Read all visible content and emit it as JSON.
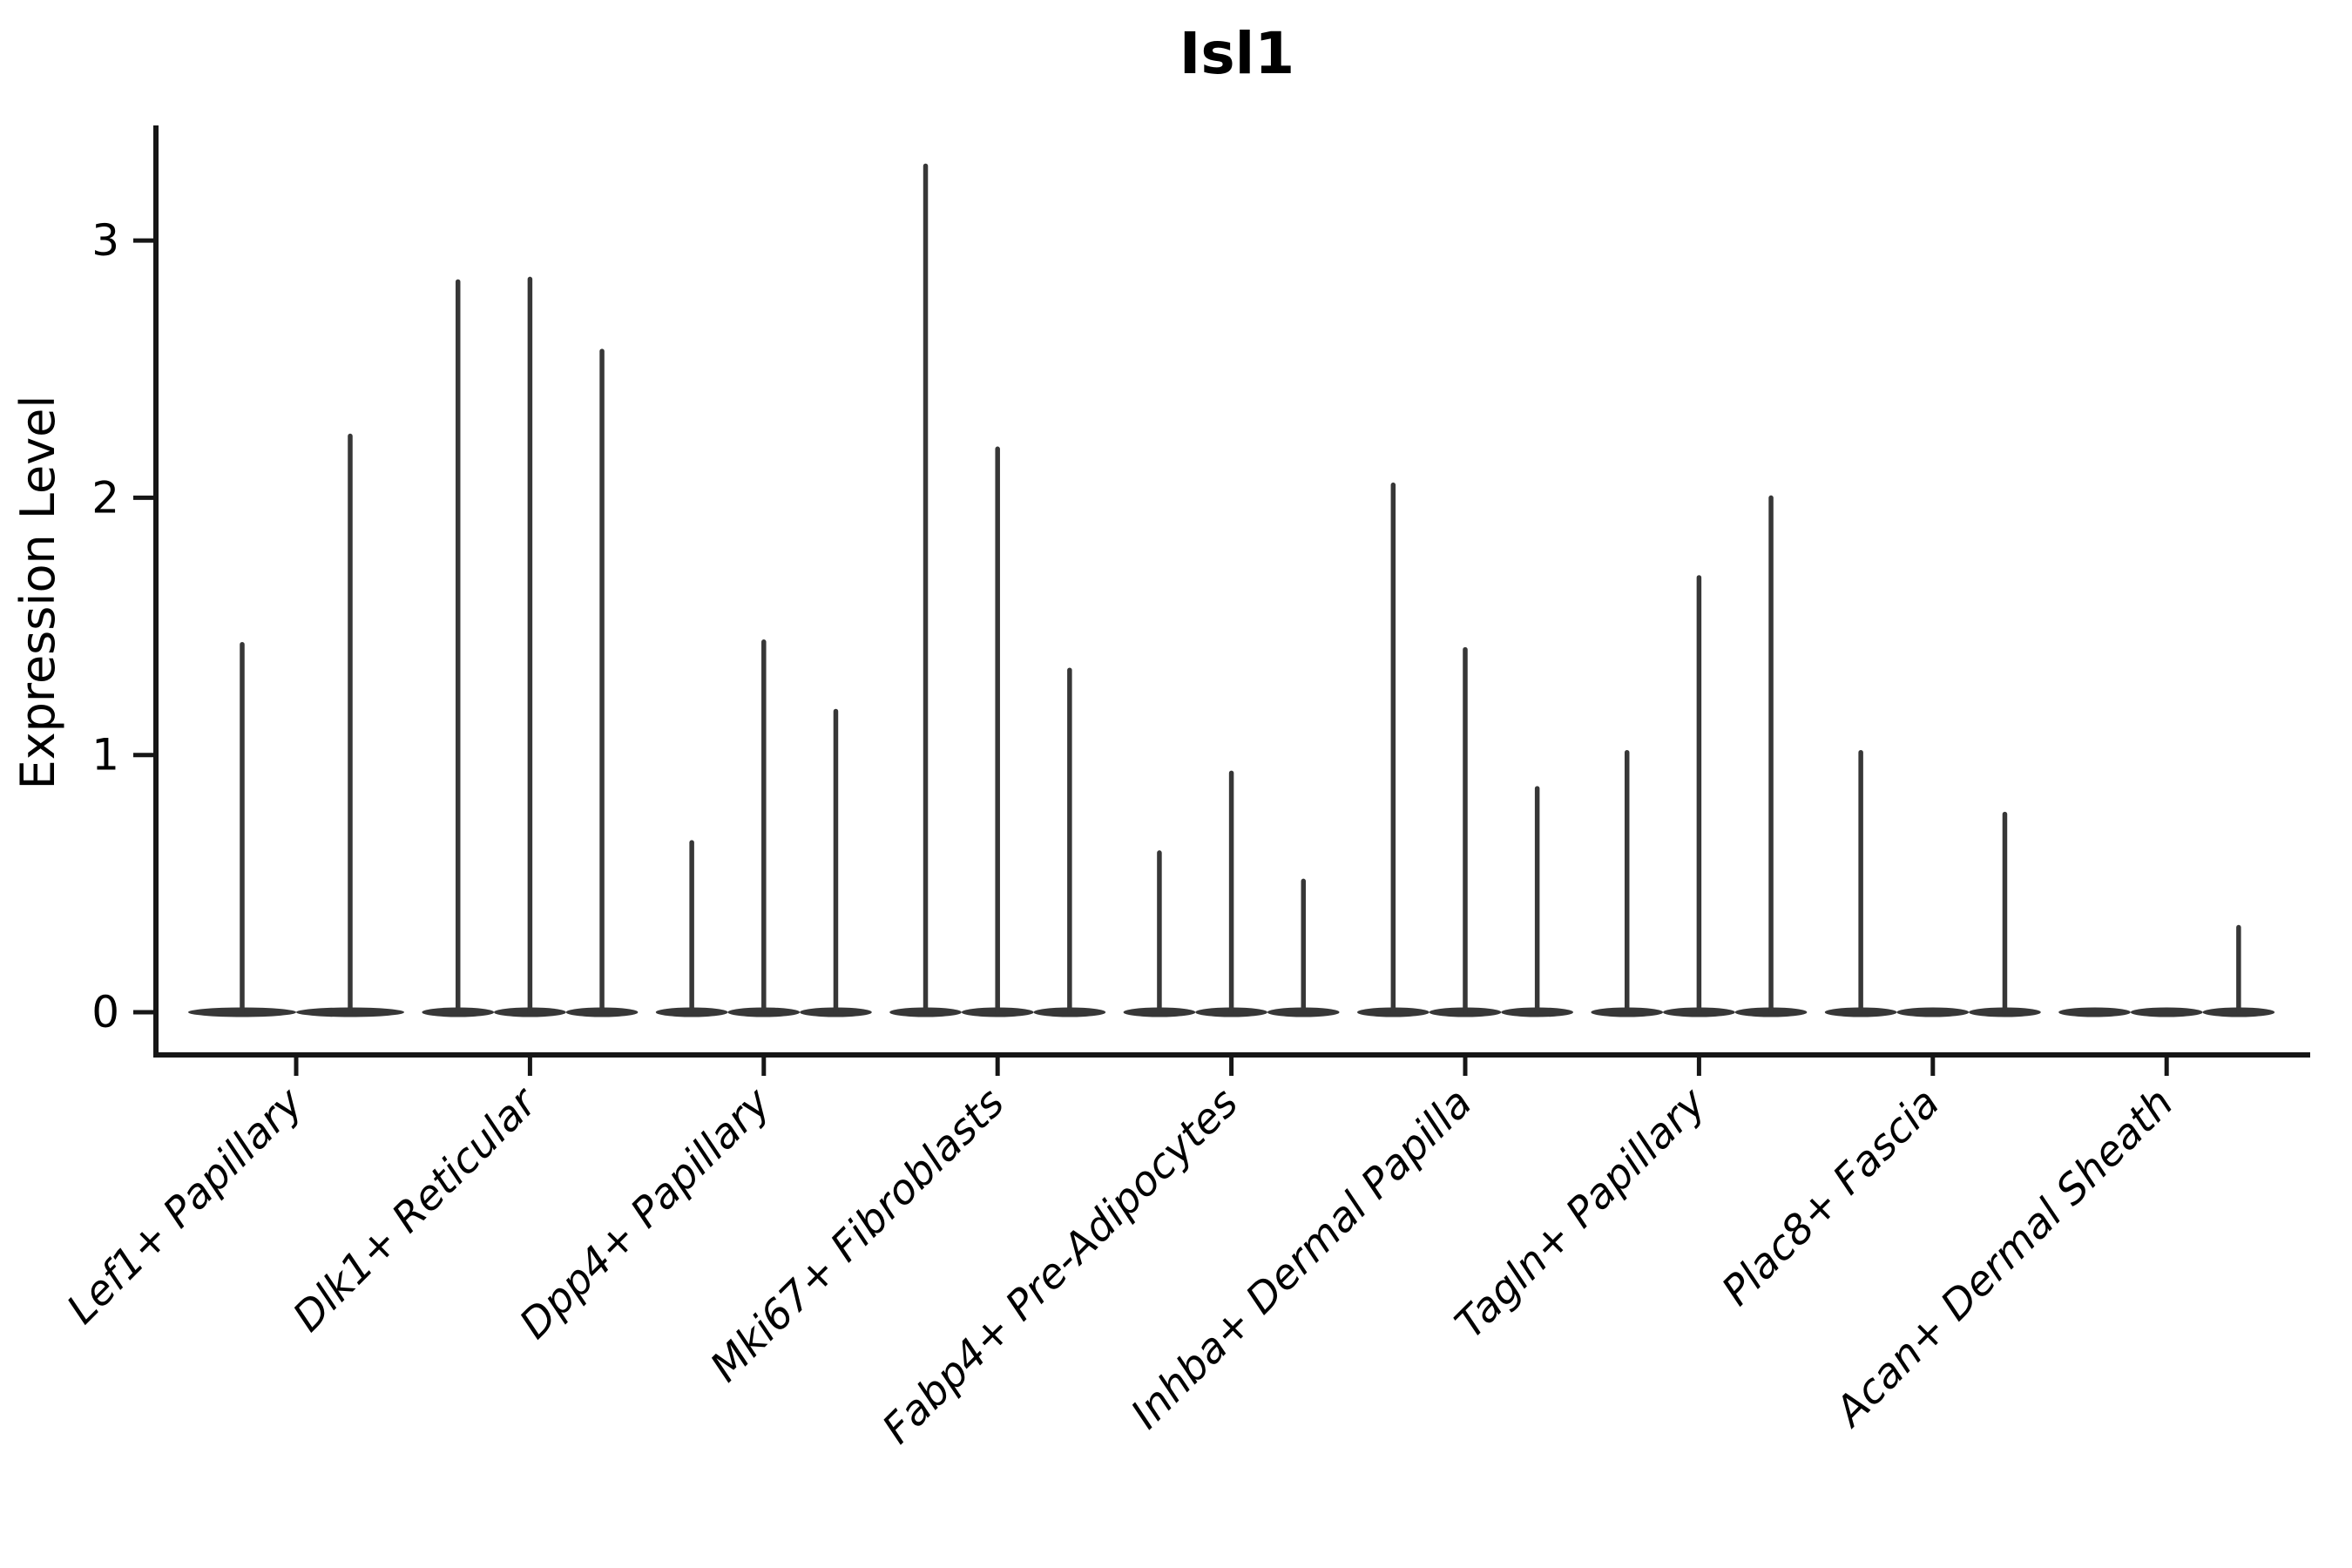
{
  "title": "Isl1",
  "chart_data": {
    "type": "violin",
    "title": "Isl1",
    "xlabel": "",
    "ylabel": "Expression Level",
    "yticks": [
      0,
      1,
      2,
      3
    ],
    "ylim": [
      -0.17,
      3.45
    ],
    "grid": false,
    "legend": "none",
    "description": "Single-cell expression violin plot; each category shows 2-3 near-zero-width violins (flat body at 0 with a thin spike to the max expression value).",
    "categories": [
      "Lef1+ Papillary",
      "Dlk1+ Reticular",
      "Dpp4+ Papillary",
      "Mki67+ Fibroblasts",
      "Fabp4+ Pre-Adipocytes",
      "Inhba+ Dermal Papilla",
      "Tagln+ Papillary",
      "Plac8+ Fascia",
      "Acan+ Dermal Sheath"
    ],
    "groups": [
      {
        "label": "Lef1+ Papillary",
        "slots": 2,
        "violin_max": [
          1.43,
          2.24
        ]
      },
      {
        "label": "Dlk1+ Reticular",
        "slots": 3,
        "violin_max": [
          2.84,
          2.85,
          2.57
        ]
      },
      {
        "label": "Dpp4+ Papillary",
        "slots": 3,
        "violin_max": [
          0.66,
          1.44,
          1.17
        ]
      },
      {
        "label": "Mki67+ Fibroblasts",
        "slots": 3,
        "violin_max": [
          3.29,
          2.19,
          1.33
        ]
      },
      {
        "label": "Fabp4+ Pre-Adipocytes",
        "slots": 3,
        "violin_max": [
          0.62,
          0.93,
          0.51
        ]
      },
      {
        "label": "Inhba+ Dermal Papilla",
        "slots": 3,
        "violin_max": [
          2.05,
          1.41,
          0.87
        ]
      },
      {
        "label": "Tagln+ Papillary",
        "slots": 3,
        "violin_max": [
          1.01,
          1.69,
          2.0
        ]
      },
      {
        "label": "Plac8+ Fascia",
        "slots": 3,
        "violin_max": [
          1.01,
          0,
          0.77
        ]
      },
      {
        "label": "Acan+ Dermal Sheath",
        "slots": 3,
        "violin_max": [
          0,
          0,
          0.33
        ]
      }
    ],
    "colors": {
      "violin": "#373737",
      "axis": "#161616",
      "text": "#000000",
      "background": "#ffffff"
    }
  }
}
